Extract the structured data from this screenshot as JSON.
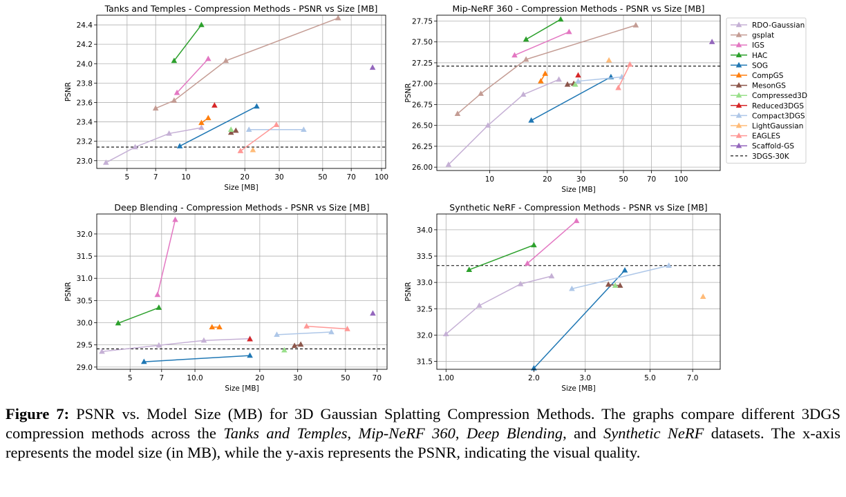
{
  "legend": {
    "entries": [
      {
        "name": "RDO-Gaussian",
        "color": "#c5b0d5"
      },
      {
        "name": "gsplat",
        "color": "#c49c94"
      },
      {
        "name": "IGS",
        "color": "#e377c2"
      },
      {
        "name": "HAC",
        "color": "#2ca02c"
      },
      {
        "name": "SOG",
        "color": "#1f77b4"
      },
      {
        "name": "CompGS",
        "color": "#ff7f0e"
      },
      {
        "name": "MesonGS",
        "color": "#8c564b"
      },
      {
        "name": "Compressed3D",
        "color": "#98df8a"
      },
      {
        "name": "Reduced3DGS",
        "color": "#d62728"
      },
      {
        "name": "Compact3DGS",
        "color": "#aec7e8"
      },
      {
        "name": "LightGaussian",
        "color": "#ffbb78"
      },
      {
        "name": "EAGLES",
        "color": "#ff9896"
      },
      {
        "name": "Scaffold-GS",
        "color": "#9467bd"
      }
    ],
    "baseline_label": "3DGS-30K"
  },
  "caption": {
    "label": "Figure 7:",
    "text": "PSNR vs. Model Size (MB) for 3D Gaussian Splatting Compression Methods. The graphs compare different 3DGS compression methods across the",
    "ds1": "Tanks and Temples",
    "sep1": ",",
    "ds2": "Mip-NeRF 360",
    "sep2": ",",
    "ds3": "Deep Blending",
    "sep3": ", and",
    "ds4": "Synthetic NeRF",
    "text2": "datasets. The x-axis represents the model size (in MB), while the y-axis represents the PSNR, indicating the visual quality."
  },
  "chart_data": [
    {
      "type": "line",
      "title": "Tanks and Temples - Compression Methods - PSNR vs Size [MB]",
      "xlabel": "Size [MB]",
      "ylabel": "PSNR",
      "x_scale": "log",
      "xlim": [
        3.5,
        105
      ],
      "ylim": [
        22.92,
        24.5
      ],
      "xticks": [
        {
          "v": 5,
          "label": "5"
        },
        {
          "v": 7,
          "label": "7"
        },
        {
          "v": 10,
          "label": "10"
        },
        {
          "v": 20,
          "label": "20"
        },
        {
          "v": 30,
          "label": "30"
        },
        {
          "v": 50,
          "label": "50"
        },
        {
          "v": 70,
          "label": "70"
        },
        {
          "v": 100,
          "label": "100"
        }
      ],
      "yticks": [
        {
          "v": 23.0,
          "label": "23.0"
        },
        {
          "v": 23.2,
          "label": "23.2"
        },
        {
          "v": 23.4,
          "label": "23.4"
        },
        {
          "v": 23.6,
          "label": "23.6"
        },
        {
          "v": 23.8,
          "label": "23.8"
        },
        {
          "v": 24.0,
          "label": "24.0"
        },
        {
          "v": 24.2,
          "label": "24.2"
        },
        {
          "v": 24.4,
          "label": "24.4"
        }
      ],
      "baseline": 23.14,
      "grid": true,
      "series": [
        {
          "name": "RDO-Gaussian",
          "points": [
            [
              3.9,
              22.98
            ],
            [
              5.5,
              23.14
            ],
            [
              8.2,
              23.28
            ],
            [
              12,
              23.34
            ]
          ]
        },
        {
          "name": "gsplat",
          "points": [
            [
              7,
              23.54
            ],
            [
              8.7,
              23.62
            ],
            [
              16,
              24.03
            ],
            [
              60,
              24.47
            ]
          ]
        },
        {
          "name": "IGS",
          "points": [
            [
              9,
              23.7
            ],
            [
              13,
              24.05
            ]
          ]
        },
        {
          "name": "HAC",
          "points": [
            [
              8.7,
              24.03
            ],
            [
              12,
              24.4
            ]
          ]
        },
        {
          "name": "SOG",
          "points": [
            [
              9.3,
              23.15
            ],
            [
              23,
              23.56
            ]
          ]
        },
        {
          "name": "CompGS",
          "points": [
            [
              12,
              23.39
            ],
            [
              13,
              23.44
            ]
          ]
        },
        {
          "name": "MesonGS",
          "points": [
            [
              17,
              23.29
            ],
            [
              18,
              23.31
            ]
          ]
        },
        {
          "name": "Compressed3D",
          "points": [
            [
              17,
              23.32
            ]
          ]
        },
        {
          "name": "Reduced3DGS",
          "points": [
            [
              14,
              23.57
            ]
          ]
        },
        {
          "name": "Compact3DGS",
          "points": [
            [
              21,
              23.32
            ],
            [
              40,
              23.32
            ]
          ]
        },
        {
          "name": "LightGaussian",
          "points": [
            [
              22,
              23.11
            ]
          ]
        },
        {
          "name": "EAGLES",
          "points": [
            [
              19,
              23.1
            ],
            [
              29,
              23.37
            ]
          ]
        },
        {
          "name": "Scaffold-GS",
          "points": [
            [
              90,
              23.96
            ]
          ]
        }
      ]
    },
    {
      "type": "line",
      "title": "Mip-NeRF 360 - Compression Methods - PSNR vs Size [MB]",
      "xlabel": "Size [MB]",
      "ylabel": "PSNR",
      "x_scale": "log",
      "xlim": [
        5.3,
        160
      ],
      "ylim": [
        25.96,
        27.82
      ],
      "xticks": [
        {
          "v": 10,
          "label": "10"
        },
        {
          "v": 20,
          "label": "20"
        },
        {
          "v": 30,
          "label": "30"
        },
        {
          "v": 50,
          "label": "50"
        },
        {
          "v": 70,
          "label": "70"
        },
        {
          "v": 100,
          "label": "100"
        }
      ],
      "yticks": [
        {
          "v": 26.0,
          "label": "26.00"
        },
        {
          "v": 26.25,
          "label": "26.25"
        },
        {
          "v": 26.5,
          "label": "26.50"
        },
        {
          "v": 26.75,
          "label": "26.75"
        },
        {
          "v": 27.0,
          "label": "27.00"
        },
        {
          "v": 27.25,
          "label": "27.25"
        },
        {
          "v": 27.5,
          "label": "27.50"
        },
        {
          "v": 27.75,
          "label": "27.75"
        }
      ],
      "baseline": 27.21,
      "grid": true,
      "series": [
        {
          "name": "RDO-Gaussian",
          "points": [
            [
              6.1,
              26.03
            ],
            [
              9.8,
              26.5
            ],
            [
              15,
              26.87
            ],
            [
              23,
              27.05
            ]
          ]
        },
        {
          "name": "gsplat",
          "points": [
            [
              6.8,
              26.64
            ],
            [
              9,
              26.88
            ],
            [
              15.5,
              27.29
            ],
            [
              58,
              27.7
            ]
          ]
        },
        {
          "name": "IGS",
          "points": [
            [
              13.5,
              27.34
            ],
            [
              26,
              27.62
            ]
          ]
        },
        {
          "name": "HAC",
          "points": [
            [
              15.5,
              27.53
            ],
            [
              23.5,
              27.77
            ]
          ]
        },
        {
          "name": "SOG",
          "points": [
            [
              16.5,
              26.56
            ],
            [
              43,
              27.08
            ]
          ]
        },
        {
          "name": "CompGS",
          "points": [
            [
              18.5,
              27.03
            ],
            [
              19.5,
              27.12
            ]
          ]
        },
        {
          "name": "MesonGS",
          "points": [
            [
              25.5,
              26.99
            ],
            [
              27.5,
              27.0
            ]
          ]
        },
        {
          "name": "Compressed3D",
          "points": [
            [
              28,
              26.99
            ]
          ]
        },
        {
          "name": "Reduced3DGS",
          "points": [
            [
              29,
              27.1
            ]
          ]
        },
        {
          "name": "Compact3DGS",
          "points": [
            [
              29,
              27.03
            ],
            [
              49,
              27.08
            ]
          ]
        },
        {
          "name": "LightGaussian",
          "points": [
            [
              42,
              27.28
            ]
          ]
        },
        {
          "name": "EAGLES",
          "points": [
            [
              47,
              26.95
            ],
            [
              54,
              27.23
            ]
          ]
        },
        {
          "name": "Scaffold-GS",
          "points": [
            [
              145,
              27.5
            ]
          ]
        }
      ]
    },
    {
      "type": "line",
      "title": "Deep Blending - Compression Methods - PSNR vs Size [MB]",
      "xlabel": "Size [MB]",
      "ylabel": "PSNR",
      "x_scale": "log",
      "xlim": [
        3.5,
        78
      ],
      "ylim": [
        28.95,
        32.45
      ],
      "xticks": [
        {
          "v": 5,
          "label": "5"
        },
        {
          "v": 7,
          "label": "7"
        },
        {
          "v": 10,
          "label": "10.0"
        },
        {
          "v": 20,
          "label": "20"
        },
        {
          "v": 30,
          "label": "30"
        },
        {
          "v": 50,
          "label": "50"
        },
        {
          "v": 70,
          "label": "70"
        }
      ],
      "yticks": [
        {
          "v": 29.0,
          "label": "29.0"
        },
        {
          "v": 29.5,
          "label": "29.5"
        },
        {
          "v": 30.0,
          "label": "30.0"
        },
        {
          "v": 30.5,
          "label": "30.5"
        },
        {
          "v": 31.0,
          "label": "31.0"
        },
        {
          "v": 31.5,
          "label": "31.5"
        },
        {
          "v": 32.0,
          "label": "32.0"
        }
      ],
      "baseline": 29.41,
      "grid": true,
      "series": [
        {
          "name": "RDO-Gaussian",
          "points": [
            [
              3.7,
              29.35
            ],
            [
              6.8,
              29.49
            ],
            [
              11,
              29.6
            ],
            [
              18,
              29.64
            ]
          ]
        },
        {
          "name": "IGS",
          "points": [
            [
              6.7,
              30.63
            ],
            [
              8.1,
              32.32
            ]
          ]
        },
        {
          "name": "HAC",
          "points": [
            [
              4.4,
              29.99
            ],
            [
              6.8,
              30.34
            ]
          ]
        },
        {
          "name": "SOG",
          "points": [
            [
              5.8,
              29.12
            ],
            [
              18,
              29.26
            ]
          ]
        },
        {
          "name": "CompGS",
          "points": [
            [
              12,
              29.9
            ],
            [
              13,
              29.9
            ]
          ]
        },
        {
          "name": "MesonGS",
          "points": [
            [
              29,
              29.48
            ],
            [
              31,
              29.51
            ]
          ]
        },
        {
          "name": "Compressed3D",
          "points": [
            [
              26,
              29.38
            ]
          ]
        },
        {
          "name": "Reduced3DGS",
          "points": [
            [
              18,
              29.63
            ]
          ]
        },
        {
          "name": "Compact3DGS",
          "points": [
            [
              24,
              29.73
            ],
            [
              43,
              29.79
            ]
          ]
        },
        {
          "name": "EAGLES",
          "points": [
            [
              33,
              29.92
            ],
            [
              51,
              29.86
            ]
          ]
        },
        {
          "name": "Scaffold-GS",
          "points": [
            [
              67,
              30.21
            ]
          ]
        }
      ]
    },
    {
      "type": "line",
      "title": "Synthetic NeRF - Compression Methods - PSNR vs Size [MB]",
      "xlabel": "Size [MB]",
      "ylabel": "PSNR",
      "x_scale": "log",
      "xlim": [
        0.93,
        8.7
      ],
      "ylim": [
        31.35,
        34.3
      ],
      "xticks": [
        {
          "v": 1,
          "label": "1.00"
        },
        {
          "v": 2,
          "label": "2.0"
        },
        {
          "v": 3,
          "label": "3.0"
        },
        {
          "v": 5,
          "label": "5.0"
        },
        {
          "v": 7,
          "label": "7.0"
        }
      ],
      "yticks": [
        {
          "v": 31.5,
          "label": "31.5"
        },
        {
          "v": 32.0,
          "label": "32.0"
        },
        {
          "v": 32.5,
          "label": "32.5"
        },
        {
          "v": 33.0,
          "label": "33.0"
        },
        {
          "v": 33.5,
          "label": "33.5"
        },
        {
          "v": 34.0,
          "label": "34.0"
        }
      ],
      "baseline": 33.32,
      "grid": true,
      "series": [
        {
          "name": "RDO-Gaussian",
          "points": [
            [
              1.0,
              32.02
            ],
            [
              1.3,
              32.56
            ],
            [
              1.8,
              32.97
            ],
            [
              2.3,
              33.12
            ]
          ]
        },
        {
          "name": "IGS",
          "points": [
            [
              1.9,
              33.36
            ],
            [
              2.8,
              34.17
            ]
          ]
        },
        {
          "name": "HAC",
          "points": [
            [
              1.2,
              33.24
            ],
            [
              2.0,
              33.71
            ]
          ]
        },
        {
          "name": "SOG",
          "points": [
            [
              2.0,
              31.37
            ],
            [
              4.1,
              33.23
            ]
          ]
        },
        {
          "name": "MesonGS",
          "points": [
            [
              3.6,
              32.96
            ],
            [
              3.95,
              32.94
            ]
          ]
        },
        {
          "name": "Compressed3D",
          "points": [
            [
              3.8,
              32.94
            ]
          ]
        },
        {
          "name": "Compact3DGS",
          "points": [
            [
              2.7,
              32.88
            ],
            [
              5.8,
              33.32
            ]
          ]
        },
        {
          "name": "LightGaussian",
          "points": [
            [
              7.6,
              32.73
            ]
          ]
        }
      ]
    }
  ]
}
